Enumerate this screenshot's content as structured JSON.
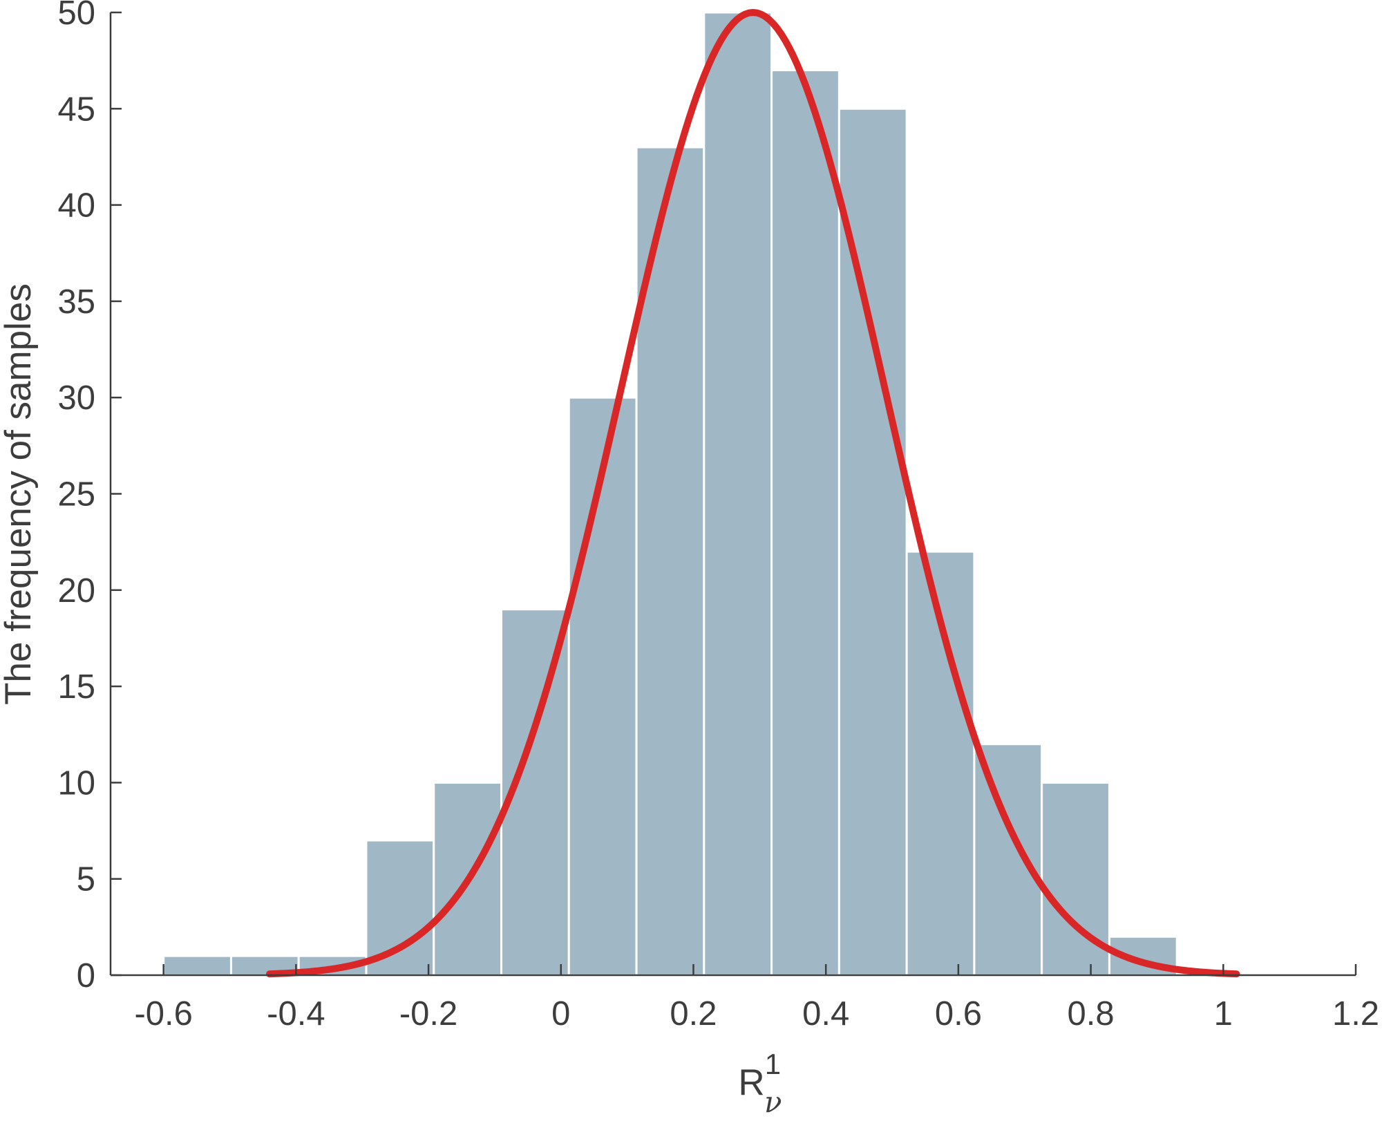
{
  "chart_data": {
    "type": "bar",
    "title": "",
    "xlabel": "R",
    "xlabel_superscript": "1",
    "xlabel_subscript": "ν",
    "ylabel": "The frequency of samples",
    "xlim": [
      -0.68,
      1.2
    ],
    "ylim": [
      0,
      50
    ],
    "xticks": [
      -0.6,
      -0.4,
      -0.2,
      0,
      0.2,
      0.4,
      0.6,
      0.8,
      1,
      1.2
    ],
    "xtick_labels": [
      "-0.6",
      "-0.4",
      "-0.2",
      "0",
      "0.2",
      "0.4",
      "0.6",
      "0.8",
      "1",
      "1.2"
    ],
    "yticks": [
      0,
      5,
      10,
      15,
      20,
      25,
      30,
      35,
      40,
      45,
      50
    ],
    "ytick_labels": [
      "0",
      "5",
      "10",
      "15",
      "20",
      "25",
      "30",
      "35",
      "40",
      "45",
      "50"
    ],
    "grid": false,
    "bin_edges": [
      -0.6,
      -0.498,
      -0.396,
      -0.294,
      -0.192,
      -0.09,
      0.012,
      0.114,
      0.216,
      0.318,
      0.42,
      0.522,
      0.624,
      0.726,
      0.828,
      0.93
    ],
    "values": [
      1,
      1,
      1,
      7,
      10,
      19,
      30,
      43,
      50,
      47,
      45,
      22,
      12,
      10,
      2
    ],
    "bar_color": "#a0b8c6",
    "fit": {
      "type": "normal",
      "mean": 0.29,
      "std": 0.2,
      "peak": 50,
      "x_range": [
        -0.44,
        1.02
      ],
      "color": "#d92626"
    }
  }
}
